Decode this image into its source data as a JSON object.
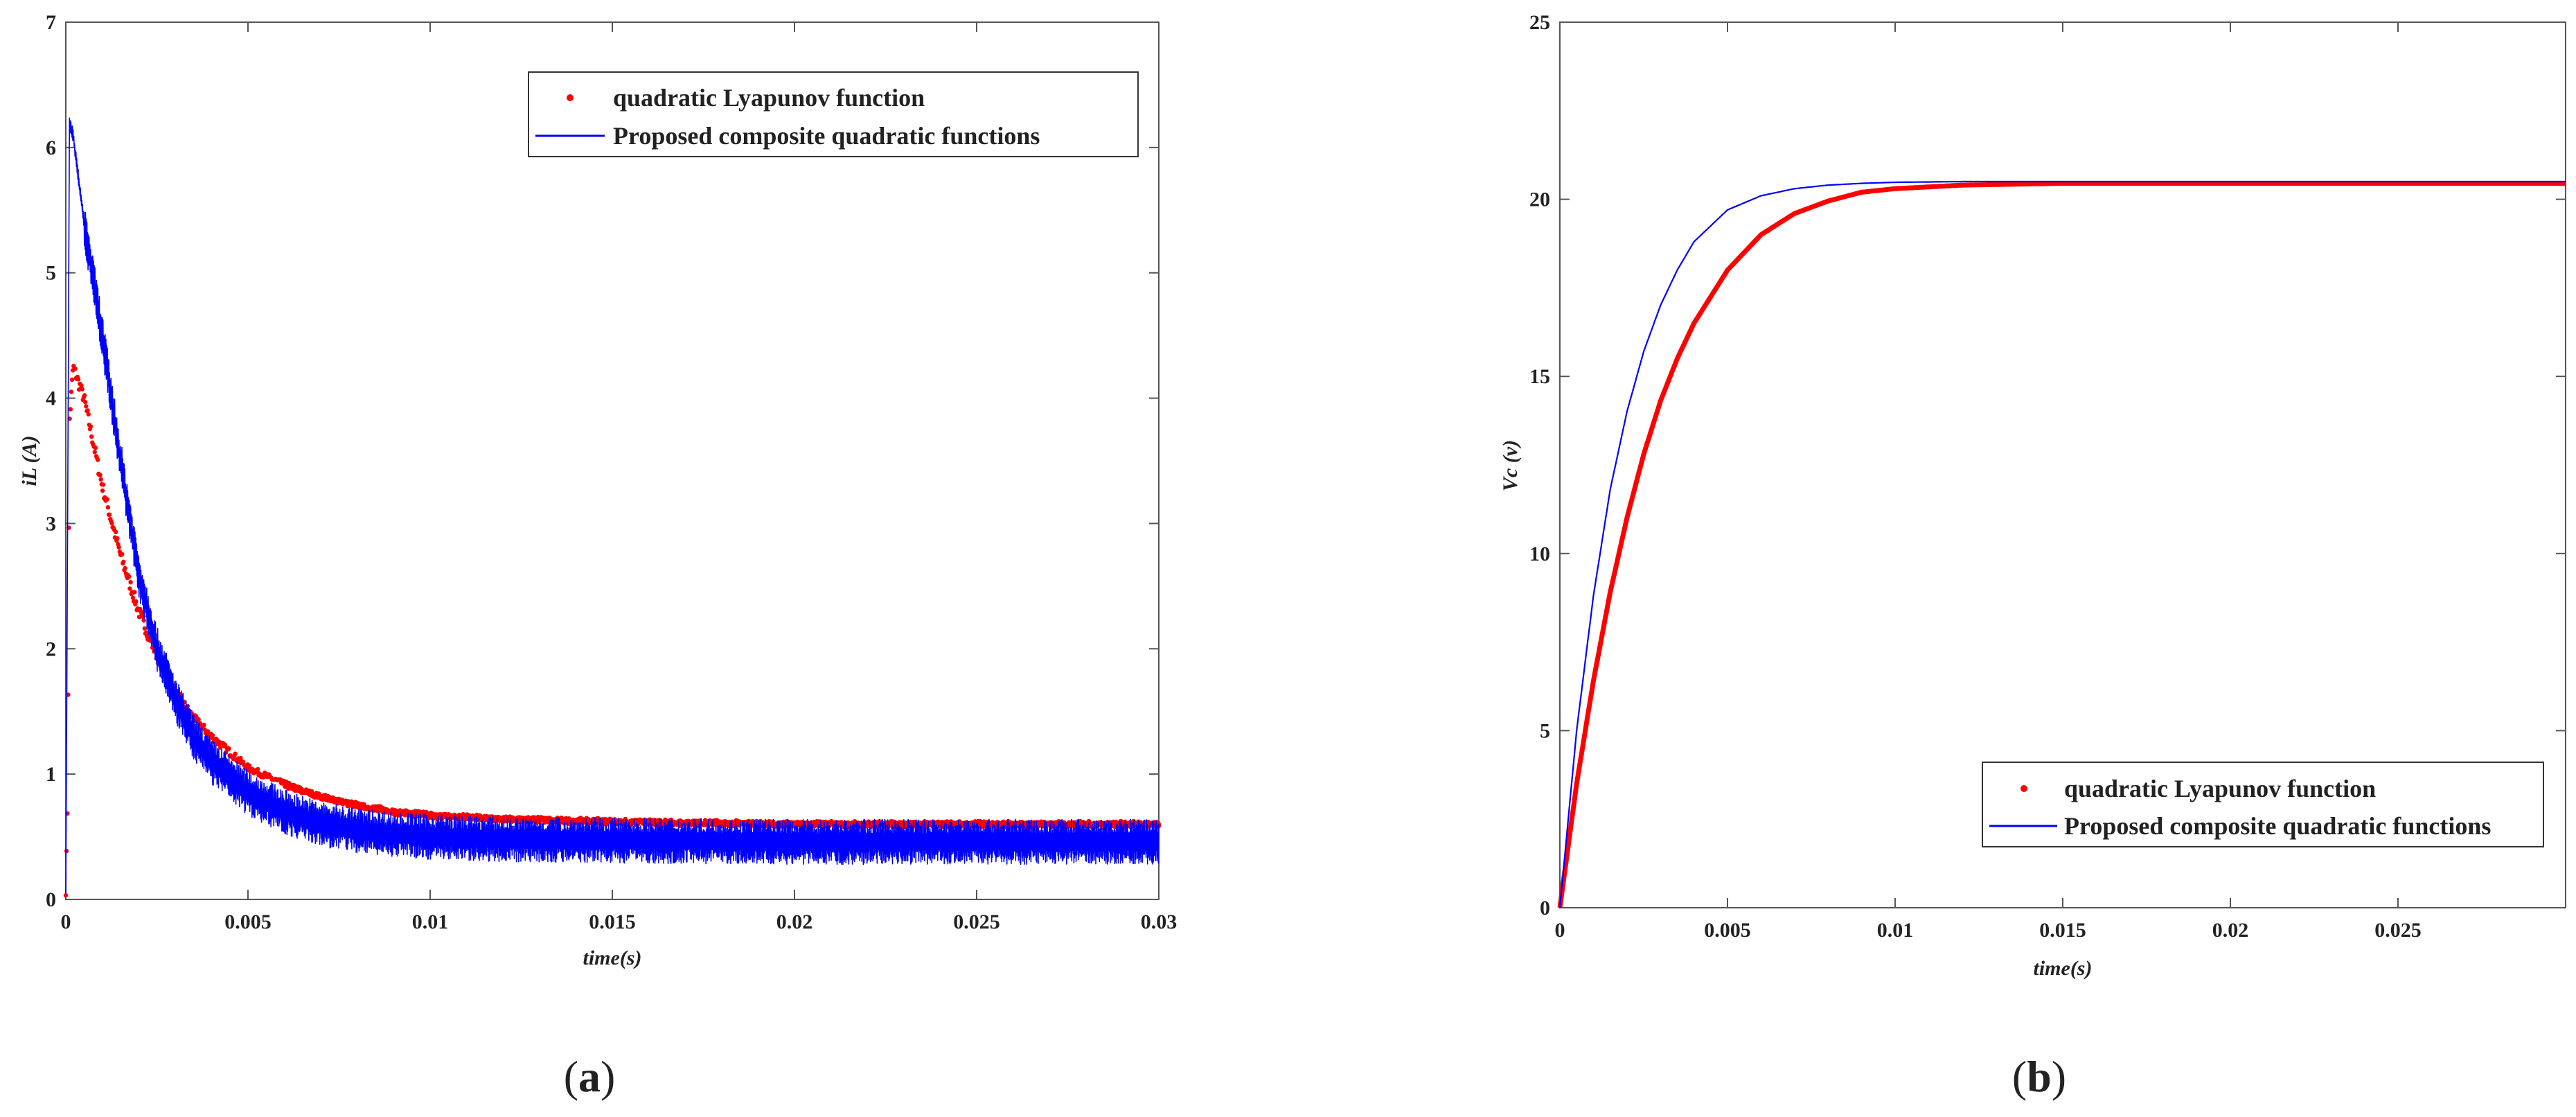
{
  "panels": [
    {
      "label": "a",
      "chart_data": {
        "type": "line",
        "xlabel": "time(s)",
        "ylabel": "iL (A)",
        "xlim": [
          0,
          0.03
        ],
        "ylim": [
          0,
          7
        ],
        "xticks": [
          0,
          0.005,
          0.01,
          0.015,
          0.02,
          0.025,
          0.03
        ],
        "xtick_labels": [
          "0",
          "0.005",
          "0.01",
          "0.015",
          "0.02",
          "0.025",
          "0.03"
        ],
        "yticks": [
          0,
          1,
          2,
          3,
          4,
          5,
          6,
          7
        ],
        "ytick_labels": [
          "0",
          "1",
          "2",
          "3",
          "4",
          "5",
          "6",
          "7"
        ],
        "grid": false,
        "legend_position": "top-right",
        "series": [
          {
            "name": "quadratic Lyapunov function",
            "style": "dots",
            "color": "#ff0000",
            "x": [
              0,
              5e-05,
              0.0001,
              0.0002,
              0.0005,
              0.001,
              0.0015,
              0.002,
              0.0025,
              0.003,
              0.0035,
              0.004,
              0.005,
              0.006,
              0.007,
              0.008,
              0.009,
              0.01,
              0.012,
              0.015,
              0.02,
              0.025,
              0.03
            ],
            "y": [
              0.05,
              0.8,
              3.8,
              4.25,
              4.0,
              3.3,
              2.75,
              2.3,
              1.95,
              1.65,
              1.45,
              1.3,
              1.05,
              0.92,
              0.82,
              0.75,
              0.7,
              0.67,
              0.64,
              0.62,
              0.6,
              0.6,
              0.6
            ],
            "noise": 0.1
          },
          {
            "name": "Proposed composite quadratic functions",
            "style": "line",
            "color": "#0000ff",
            "x": [
              0,
              5e-05,
              0.0001,
              0.0002,
              0.0005,
              0.001,
              0.0015,
              0.002,
              0.0025,
              0.003,
              0.0035,
              0.004,
              0.005,
              0.006,
              0.007,
              0.008,
              0.009,
              0.01,
              0.012,
              0.015,
              0.02,
              0.025,
              0.03
            ],
            "y": [
              0,
              3.0,
              6.2,
              6.1,
              5.4,
              4.5,
              3.5,
              2.6,
              2.0,
              1.6,
              1.3,
              1.1,
              0.85,
              0.7,
              0.6,
              0.55,
              0.52,
              0.5,
              0.48,
              0.47,
              0.46,
              0.46,
              0.46
            ],
            "noise": 0.18
          }
        ]
      }
    },
    {
      "label": "b",
      "chart_data": {
        "type": "line",
        "xlabel": "time(s)",
        "ylabel": "Vc (v)",
        "xlim": [
          0,
          0.03
        ],
        "ylim": [
          0,
          25
        ],
        "xticks": [
          0,
          0.005,
          0.01,
          0.015,
          0.02,
          0.025
        ],
        "xtick_labels": [
          "0",
          "0.005",
          "0.01",
          "0.015",
          "0.02",
          "0.025"
        ],
        "yticks": [
          0,
          5,
          10,
          15,
          20,
          25
        ],
        "ytick_labels": [
          "0",
          "5",
          "10",
          "15",
          "20",
          "25"
        ],
        "grid": false,
        "legend_position": "bottom-right",
        "series": [
          {
            "name": "quadratic Lyapunov function",
            "style": "thick-line",
            "color": "#ff0000",
            "x": [
              0,
              0.0005,
              0.001,
              0.0015,
              0.002,
              0.0025,
              0.003,
              0.0035,
              0.004,
              0.005,
              0.006,
              0.007,
              0.008,
              0.009,
              0.01,
              0.012,
              0.015,
              0.02,
              0.025,
              0.03
            ],
            "y": [
              0,
              3.5,
              6.4,
              8.9,
              11.0,
              12.8,
              14.3,
              15.5,
              16.5,
              18.0,
              19.0,
              19.6,
              19.95,
              20.2,
              20.3,
              20.4,
              20.45,
              20.45,
              20.45,
              20.45
            ]
          },
          {
            "name": "Proposed composite quadratic functions",
            "style": "line",
            "color": "#0000ff",
            "x": [
              0,
              0.0005,
              0.001,
              0.0015,
              0.002,
              0.0025,
              0.003,
              0.0035,
              0.004,
              0.005,
              0.006,
              0.007,
              0.008,
              0.009,
              0.01,
              0.012,
              0.015,
              0.02,
              0.025,
              0.03
            ],
            "y": [
              0,
              5.0,
              8.8,
              11.8,
              14.0,
              15.7,
              17.0,
              18.0,
              18.8,
              19.7,
              20.1,
              20.3,
              20.4,
              20.45,
              20.48,
              20.5,
              20.5,
              20.5,
              20.5,
              20.5
            ]
          }
        ]
      }
    }
  ]
}
